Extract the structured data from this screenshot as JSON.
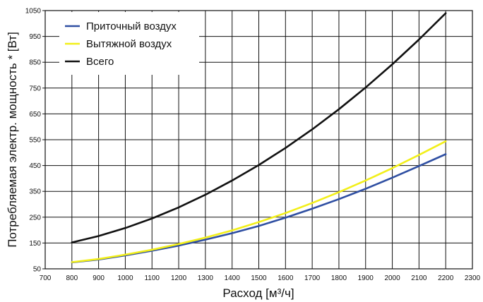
{
  "chart_data": {
    "type": "line",
    "xlabel": "Расход [м³/ч]",
    "ylabel": "Потребляемая электр. мощность * [Вт]",
    "xlim": [
      700,
      2300
    ],
    "ylim": [
      50,
      1050
    ],
    "x_ticks": [
      "700",
      "800",
      "900",
      "1000",
      "1100",
      "1200",
      "1300",
      "1400",
      "1500",
      "1600",
      "1700",
      "1800",
      "1900",
      "2000",
      "2100",
      "2200",
      "2300"
    ],
    "y_ticks": [
      "50",
      "150",
      "250",
      "350",
      "450",
      "550",
      "650",
      "750",
      "850",
      "950",
      "1050"
    ],
    "grid": true,
    "legend_position": "top-left",
    "x": [
      800,
      900,
      1000,
      1100,
      1200,
      1300,
      1400,
      1500,
      1600,
      1700,
      1800,
      1900,
      2000,
      2100,
      2200
    ],
    "series": [
      {
        "name": "Приточный воздух",
        "color": "#2f4fa2",
        "values": [
          75,
          86,
          102,
          120,
          140,
          163,
          188,
          216,
          248,
          283,
          320,
          360,
          403,
          448,
          494
        ]
      },
      {
        "name": "Вытяжной воздух",
        "color": "#f2ef1a",
        "values": [
          76,
          88,
          105,
          124,
          146,
          171,
          199,
          231,
          266,
          305,
          347,
          392,
          440,
          491,
          544
        ]
      },
      {
        "name": "Всего",
        "color": "#111111",
        "values": [
          152,
          177,
          208,
          245,
          288,
          337,
          392,
          452,
          518,
          590,
          668,
          752,
          842,
          938,
          1040
        ]
      }
    ]
  }
}
